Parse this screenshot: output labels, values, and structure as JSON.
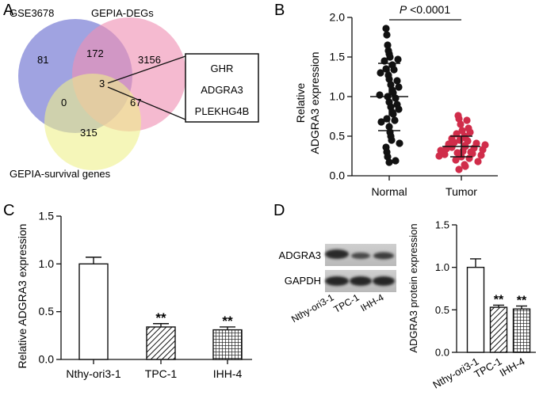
{
  "panel_labels": {
    "a": "A",
    "b": "B",
    "c": "C",
    "d": "D"
  },
  "colors": {
    "venn_a": "#7b7fd6",
    "venn_b": "#ef8fb3",
    "venn_c": "#eef08a",
    "tumor": "#d02c4a",
    "normal": "#111111"
  },
  "venn": {
    "set_a": "GSE3678",
    "set_b": "GEPIA-DEGs",
    "set_c": "GEPIA-survival genes",
    "counts": {
      "a_only": "81",
      "ab": "172",
      "b_only": "3156",
      "abc": "3",
      "ac": "0",
      "bc": "67",
      "c_only": "315"
    },
    "genes": [
      "GHR",
      "ADGRA3",
      "PLEKHG4B"
    ]
  },
  "chart_data": [
    {
      "panel": "B",
      "type": "scatter",
      "title": "",
      "categories": [
        "Normal",
        "Tumor"
      ],
      "ylabel": "Relative ADGRA3 expression",
      "ylabel_lines": [
        "Relative",
        "ADGRA3 expression"
      ],
      "ylim": [
        0,
        2.0
      ],
      "yticks": [
        "0.0",
        "0.5",
        "1.0",
        "1.5",
        "2.0"
      ],
      "annotation": {
        "italic": "P",
        "rest": " <0.0001"
      },
      "series": [
        {
          "name": "Normal",
          "mean": 1.0,
          "sd_low": 0.57,
          "sd_high": 1.42,
          "values": [
            1.86,
            1.78,
            1.65,
            1.58,
            1.54,
            1.5,
            1.47,
            1.45,
            1.4,
            1.35,
            1.34,
            1.3,
            1.27,
            1.22,
            1.2,
            1.15,
            1.12,
            1.08,
            1.05,
            1.02,
            1.0,
            0.98,
            0.93,
            0.9,
            0.87,
            0.84,
            0.8,
            0.78,
            0.72,
            0.7,
            0.68,
            0.62,
            0.55,
            0.5,
            0.45,
            0.41,
            0.36,
            0.3,
            0.24,
            0.19,
            0.17
          ]
        },
        {
          "name": "Tumor",
          "mean": 0.37,
          "sd_low": 0.24,
          "sd_high": 0.5,
          "values": [
            0.76,
            0.72,
            0.7,
            0.65,
            0.6,
            0.57,
            0.55,
            0.53,
            0.5,
            0.48,
            0.47,
            0.45,
            0.44,
            0.42,
            0.41,
            0.4,
            0.39,
            0.38,
            0.37,
            0.36,
            0.35,
            0.34,
            0.33,
            0.32,
            0.31,
            0.3,
            0.29,
            0.28,
            0.27,
            0.26,
            0.25,
            0.24,
            0.22,
            0.2,
            0.18,
            0.14,
            0.12,
            0.08
          ]
        }
      ]
    },
    {
      "panel": "C",
      "type": "bar",
      "title": "",
      "categories": [
        "Nthy-ori3-1",
        "TPC-1",
        "IHH-4"
      ],
      "values": [
        1.0,
        0.34,
        0.31
      ],
      "errors": [
        0.07,
        0.035,
        0.03
      ],
      "patterns": [
        "none",
        "diagonal",
        "grid"
      ],
      "significance": [
        "",
        "**",
        "**"
      ],
      "xlabel": "",
      "ylabel": "Relative ADGRA3 expression",
      "ylim": [
        0,
        1.5
      ],
      "yticks": [
        "0.0",
        "0.5",
        "1.0",
        "1.5"
      ]
    },
    {
      "panel": "D",
      "type": "bar",
      "title": "",
      "categories": [
        "Nthy-ori3-1",
        "TPC-1",
        "IHH-4"
      ],
      "values": [
        1.0,
        0.53,
        0.51
      ],
      "errors": [
        0.1,
        0.025,
        0.035
      ],
      "patterns": [
        "none",
        "diagonal",
        "grid"
      ],
      "significance": [
        "",
        "**",
        "**"
      ],
      "xlabel": "",
      "ylabel": "ADGRA3 protein expression",
      "ylim": [
        0,
        1.5
      ],
      "yticks": [
        "0.0",
        "0.5",
        "1.0",
        "1.5"
      ]
    }
  ],
  "blot": {
    "rows": [
      "ADGRA3",
      "GAPDH"
    ],
    "lanes": [
      "Nthy-ori3-1",
      "TPC-1",
      "IHH-4"
    ]
  }
}
